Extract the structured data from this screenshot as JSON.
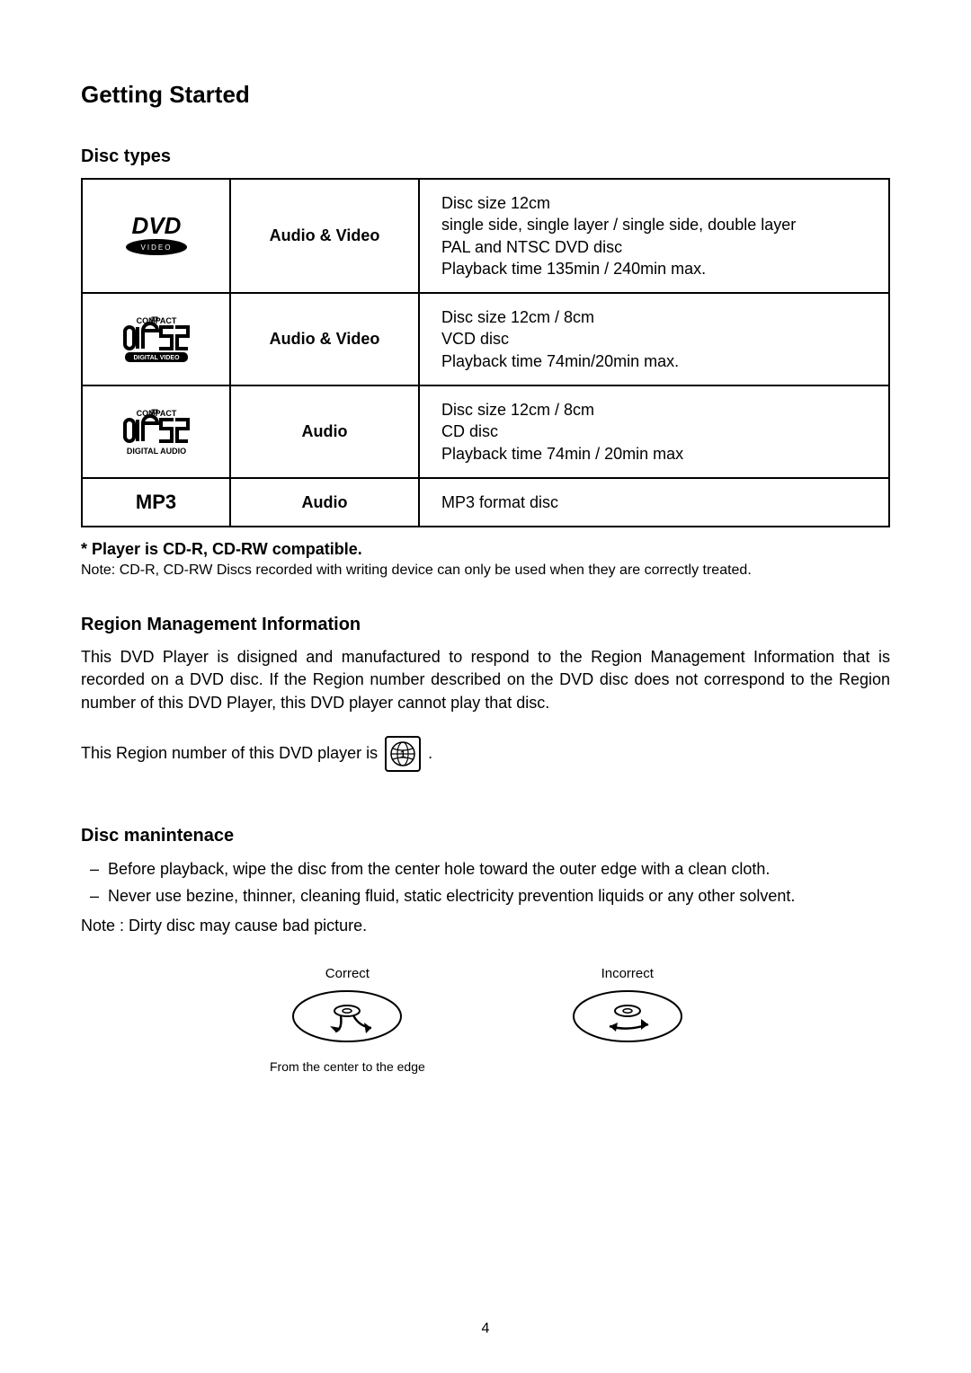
{
  "heading": "Getting Started",
  "disc_types_heading": "Disc types",
  "table": {
    "rows": [
      {
        "logo": "dvd",
        "type": "Audio & Video",
        "desc": "Disc size 12cm\nsingle side, single layer / single side, double layer\nPAL and NTSC DVD disc\nPlayback time 135min / 240min max."
      },
      {
        "logo": "cdv",
        "type": "Audio & Video",
        "desc": "Disc size 12cm / 8cm\nVCD disc\nPlayback time 74min/20min max."
      },
      {
        "logo": "cda",
        "type": "Audio",
        "desc": "Disc size 12cm / 8cm\nCD disc\nPlayback time 74min / 20min max"
      },
      {
        "logo": "mp3",
        "mp3_label": "MP3",
        "type": "Audio",
        "desc": "MP3 format disc"
      }
    ]
  },
  "player_note": "* Player is CD-R, CD-RW compatible.",
  "player_subnote": "Note: CD-R, CD-RW Discs recorded with writing device can only be used when they are correctly treated.",
  "region_heading": "Region Management Information",
  "region_para": "This DVD Player is disigned and manufactured to respond to the Region Management Information that is recorded on a DVD disc.  If the Region number described on the DVD disc does not correspond to the Region number of this DVD Player, this DVD player cannot play that disc.",
  "region_line_prefix": "This Region number of this DVD player is",
  "region_line_suffix": ".",
  "maint_heading": "Disc manintenace",
  "maint_items": [
    "Before playback, wipe the disc from the center hole toward the outer edge with a clean cloth.",
    "Never use bezine, thinner, cleaning fluid, static electricity  prevention liquids or any other solvent."
  ],
  "maint_note": "Note : Dirty disc may cause bad picture.",
  "wipe": {
    "correct_label": "Correct",
    "incorrect_label": "Incorrect",
    "caption": "From the center to the edge"
  },
  "page_number": "4"
}
